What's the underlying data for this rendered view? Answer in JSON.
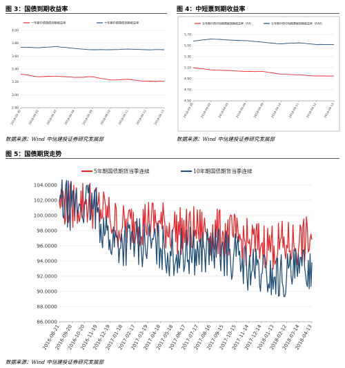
{
  "figures": {
    "fig3_title": "图 3：国债到期收益率",
    "fig4_title": "图 4：中短票到期收益率",
    "fig5_title": "图 5：国债期货走势",
    "source_text": "数据来源：Wind 中信建投证券研究发展部"
  },
  "colors": {
    "red": "#e8262a",
    "blue": "#1f4e79",
    "grid": "#d9d9d9",
    "axis": "#7f7f7f"
  },
  "chart_data": [
    {
      "id": "fig3",
      "type": "line",
      "title": "",
      "x": [
        "2018-03-30",
        "2018-04-02",
        "2018-04-03",
        "2018-04-04",
        "2018-04-09",
        "2018-04-10",
        "2018-04-11",
        "2018-04-12",
        "2018-04-13"
      ],
      "ylim": [
        2.8,
        4.0
      ],
      "yticks": [
        "4.00",
        "3.80",
        "3.60",
        "3.40",
        "3.20",
        "3.00",
        "2.80"
      ],
      "series": [
        {
          "name": "一年期中债国债到期收益率",
          "color": "#e8262a",
          "values": [
            3.32,
            3.28,
            3.29,
            3.27,
            3.28,
            3.23,
            3.24,
            3.21,
            3.21
          ]
        },
        {
          "name": "十年期中债国债到期收益率",
          "color": "#1f4e79",
          "values": [
            3.74,
            3.73,
            3.75,
            3.72,
            3.7,
            3.7,
            3.71,
            3.7,
            3.7
          ]
        }
      ],
      "legend_position": "top"
    },
    {
      "id": "fig4",
      "type": "line",
      "title": "",
      "x": [
        "2018-03-30",
        "2018-04-02",
        "2018-04-03",
        "2018-04-04",
        "2018-04-09",
        "2018-04-10",
        "2018-04-11",
        "2018-04-12",
        "2018-04-13"
      ],
      "ylim": [
        4.5,
        5.7
      ],
      "yticks": [
        "5.70",
        "5.50",
        "5.30",
        "5.10",
        "4.90",
        "4.70",
        "4.50"
      ],
      "series": [
        {
          "name": "五年期中债中短期票据到期收益率（AA）",
          "color": "#e8262a",
          "values": [
            5.1,
            5.06,
            5.05,
            5.03,
            5.03,
            4.98,
            4.97,
            4.95,
            4.95
          ]
        },
        {
          "name": "五年期中债中短期票据到期收益率（AAA）",
          "color": "#1f4e79",
          "values": [
            5.58,
            5.62,
            5.6,
            5.59,
            5.56,
            5.53,
            5.55,
            5.52,
            5.52
          ]
        }
      ],
      "legend_position": "top"
    },
    {
      "id": "fig5",
      "type": "line",
      "title": "",
      "x": [
        "2016-08-21",
        "2016-09-20",
        "2016-10-20",
        "2016-11-19",
        "2016-12-19",
        "2017-01-18",
        "2017-02-17",
        "2017-03-19",
        "2017-04-18",
        "2017-05-18",
        "2017-06-17",
        "2017-07-17",
        "2017-08-16",
        "2017-09-15",
        "2017-10-15",
        "2017-11-14",
        "2017-12-14",
        "2018-01-13",
        "2018-02-12",
        "2018-03-14",
        "2018-04-13"
      ],
      "ylim": [
        86.0,
        104.0
      ],
      "yticks": [
        "104.0000",
        "102.0000",
        "100.0000",
        "98.0000",
        "96.0000",
        "94.0000",
        "92.0000",
        "90.0000",
        "88.0000",
        "86.0000"
      ],
      "series": [
        {
          "name": "5年期国债期货当季连续",
          "color": "#e8262a",
          "values": [
            101.9,
            101.4,
            101.8,
            101.2,
            99.6,
            98.3,
            99.1,
            99.3,
            98.9,
            98.2,
            97.8,
            98.1,
            97.7,
            97.6,
            97.0,
            96.3,
            96.2,
            96.0,
            96.1,
            96.4,
            96.8
          ]
        },
        {
          "name": "10年期国债期货当季连续",
          "color": "#1f4e79",
          "values": [
            101.8,
            101.2,
            101.6,
            100.4,
            96.8,
            96.3,
            96.7,
            96.3,
            95.7,
            95.0,
            95.2,
            95.3,
            95.4,
            95.1,
            94.6,
            93.0,
            92.3,
            91.8,
            92.1,
            92.4,
            93.8
          ]
        }
      ],
      "legend_position": "top"
    }
  ]
}
